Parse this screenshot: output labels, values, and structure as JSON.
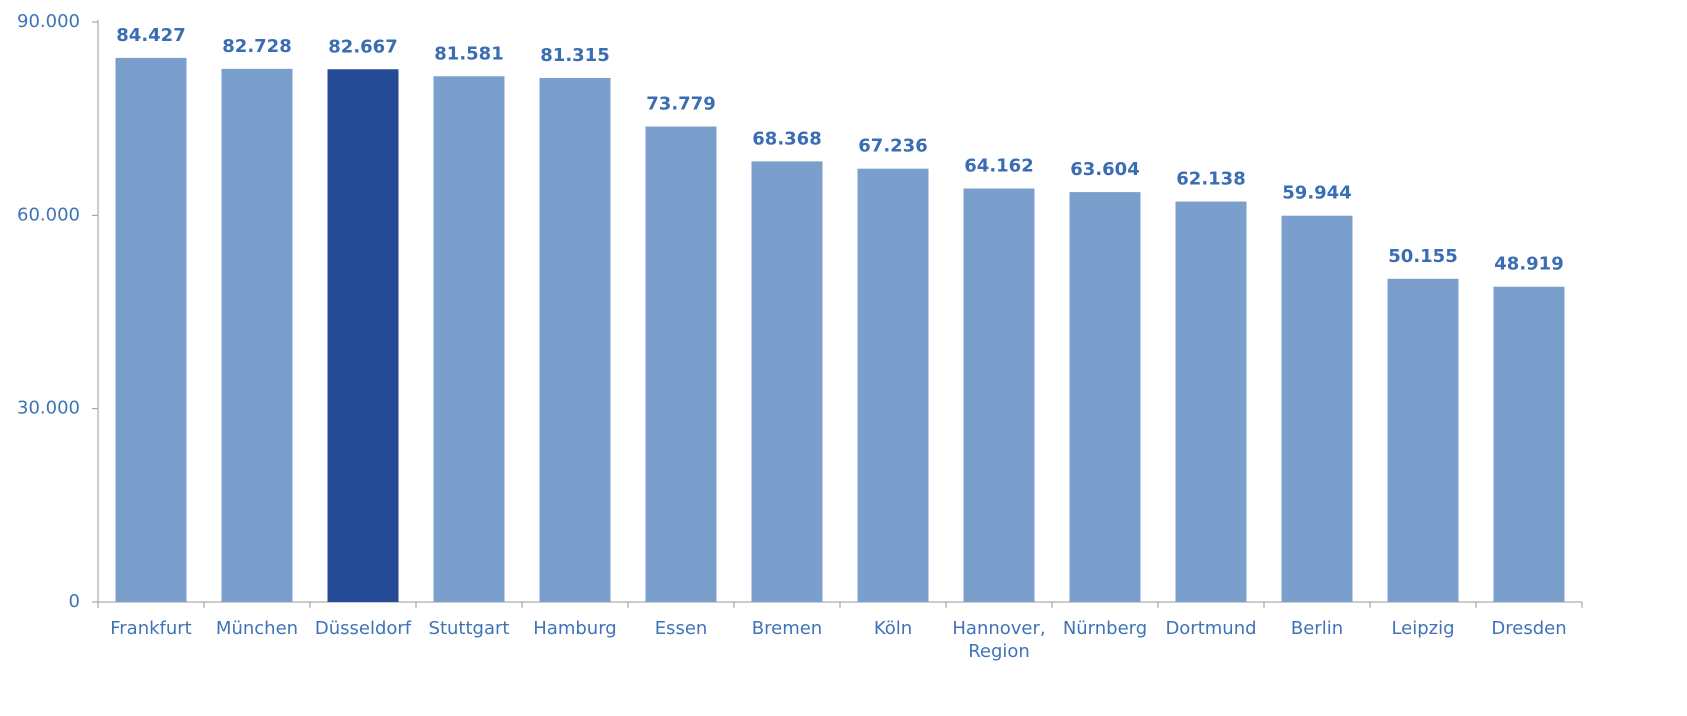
{
  "chart_data": {
    "type": "bar",
    "categories": [
      "Frankfurt",
      "München",
      "Düsseldorf",
      "Stuttgart",
      "Hamburg",
      "Essen",
      "Bremen",
      "Köln",
      "Hannover, Region",
      "Nürnberg",
      "Dortmund",
      "Berlin",
      "Leipzig",
      "Dresden"
    ],
    "values": [
      84427,
      82728,
      82667,
      81581,
      81315,
      73779,
      68368,
      67236,
      64162,
      63604,
      62138,
      59944,
      50155,
      48919
    ],
    "value_labels": [
      "84.427",
      "82.728",
      "82.667",
      "81.581",
      "81.315",
      "73.779",
      "68.368",
      "67.236",
      "64.162",
      "63.604",
      "62.138",
      "59.944",
      "50.155",
      "48.919"
    ],
    "colors": [
      "#7a9fcc",
      "#7a9fcc",
      "#264b96",
      "#7a9fcc",
      "#7a9fcc",
      "#7a9fcc",
      "#7a9fcc",
      "#7a9fcc",
      "#7a9fcc",
      "#7a9fcc",
      "#7a9fcc",
      "#7a9fcc",
      "#7a9fcc",
      "#7a9fcc"
    ],
    "ylim": [
      0,
      90000
    ],
    "yticks": [
      0,
      {
        "value": 30000,
        "label": "30.000"
      },
      {
        "value": 60000,
        "label": "60.000"
      },
      {
        "value": 90000,
        "label": "90.000"
      }
    ],
    "grid": false
  }
}
